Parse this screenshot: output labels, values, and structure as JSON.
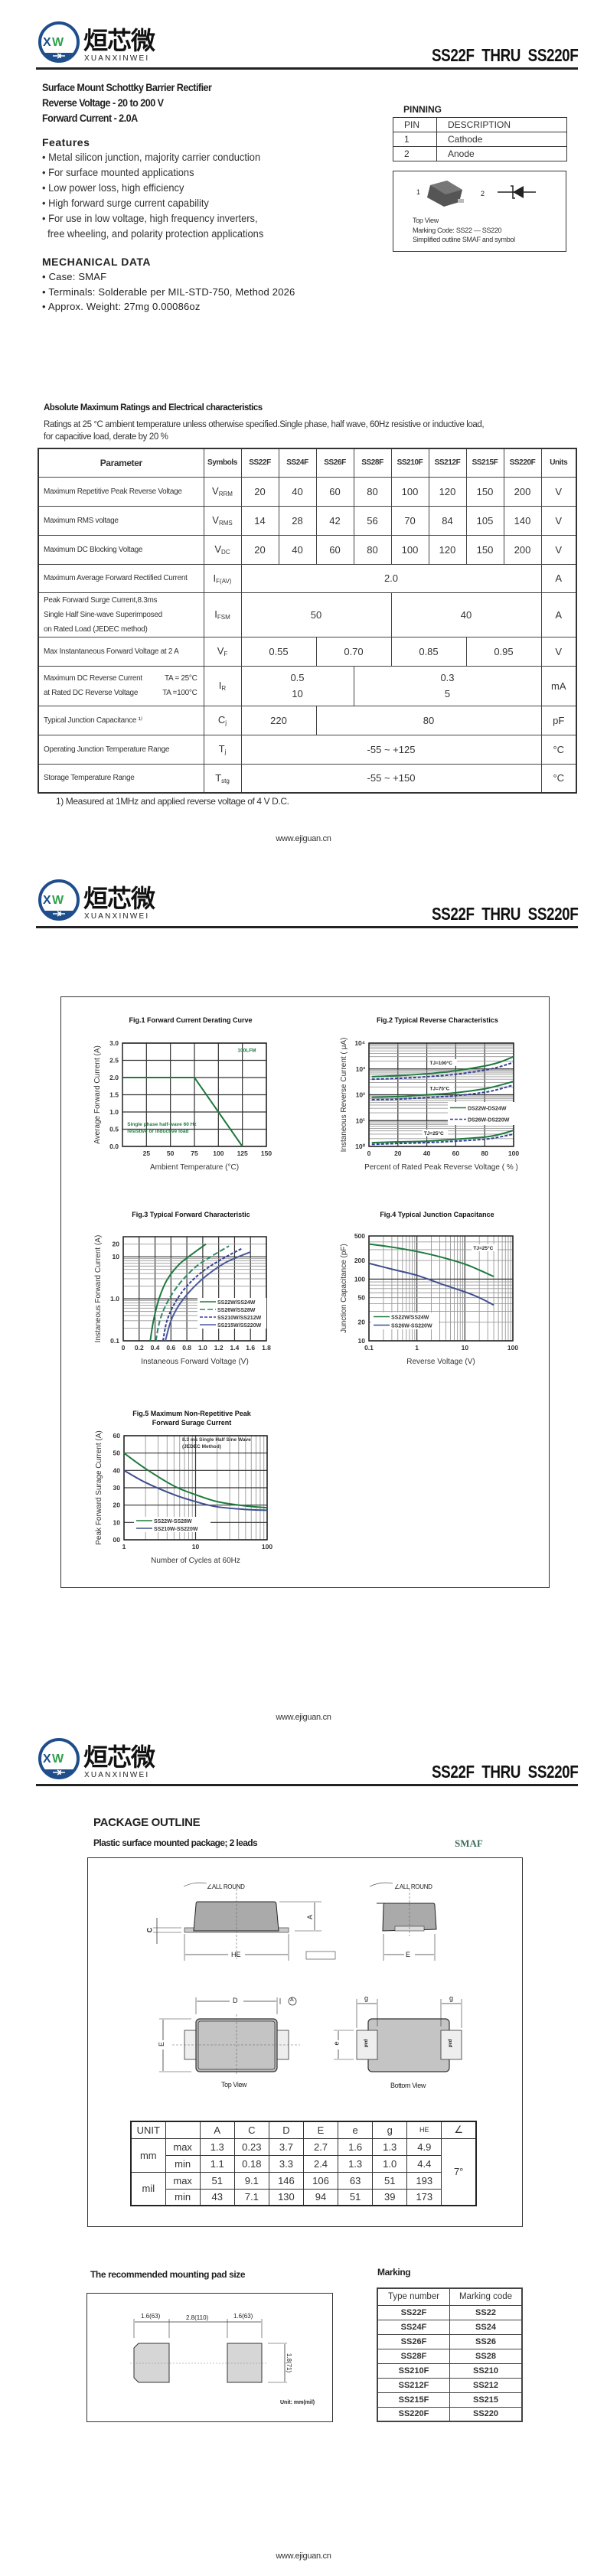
{
  "header": {
    "brand_latin": "XUANXINWEI",
    "brand_cn": "烜芯微",
    "logo_letters": "XW",
    "title": "SS22F  THRU  SS220F",
    "colors": {
      "logo_blue": "#1f4e8c",
      "logo_green": "#2ea04a"
    }
  },
  "intro": {
    "lines": [
      "Surface Mount Schottky Barrier Rectifier",
      "Reverse Voltage - 20 to 200 V",
      "Forward Current - 2.0A"
    ]
  },
  "features": {
    "title": "Features",
    "items": [
      "• Metal silicon junction, majority carrier conduction",
      "• For surface mounted applications",
      "• Low power loss, high efficiency",
      "• High forward surge current capability",
      "• For use in low voltage, high frequency inverters,",
      "  free wheeling, and polarity protection applications"
    ]
  },
  "mechanical": {
    "title": "MECHANICAL DATA",
    "items": [
      "• Case: SMAF",
      "• Terminals: Solderable per MIL-STD-750, Method 2026",
      "• Approx. Weight: 27mg   0.00086oz"
    ]
  },
  "pinning": {
    "title": "PINNING",
    "headers": [
      "PIN",
      "DESCRIPTION"
    ],
    "rows": [
      [
        "1",
        "Cathode"
      ],
      [
        "2",
        "Anode"
      ]
    ],
    "pin1": "1",
    "pin2": "2",
    "caption": [
      "Top View",
      "Marking Code:  SS22 — SS220",
      "Simplified outline SMAF and symbol"
    ]
  },
  "ratings": {
    "title": "Absolute Maximum Ratings and Electrical characteristics",
    "note": [
      "Ratings at 25 °C ambient temperature unless otherwise specified.Single phase, half wave, 60Hz resistive or inductive load,",
      "for capacitive load, derate by 20 %"
    ],
    "columns": [
      "Parameter",
      "Symbols",
      "SS22F",
      "SS24F",
      "SS26F",
      "SS28F",
      "SS210F",
      "SS212F",
      "SS215F",
      "SS220F",
      "Units"
    ],
    "rows": [
      {
        "param": [
          "Maximum Repetitive Peak Reverse Voltage"
        ],
        "sym": "V",
        "sub": "RRM",
        "cells": [
          {
            "v": "20",
            "span": 1
          },
          {
            "v": "40",
            "span": 1
          },
          {
            "v": "60",
            "span": 1
          },
          {
            "v": "80",
            "span": 1
          },
          {
            "v": "100",
            "span": 1
          },
          {
            "v": "120",
            "span": 1
          },
          {
            "v": "150",
            "span": 1
          },
          {
            "v": "200",
            "span": 1
          }
        ],
        "unit": "V"
      },
      {
        "param": [
          "Maximum RMS voltage"
        ],
        "sym": "V",
        "sub": "RMS",
        "cells": [
          {
            "v": "14",
            "span": 1
          },
          {
            "v": "28",
            "span": 1
          },
          {
            "v": "42",
            "span": 1
          },
          {
            "v": "56",
            "span": 1
          },
          {
            "v": "70",
            "span": 1
          },
          {
            "v": "84",
            "span": 1
          },
          {
            "v": "105",
            "span": 1
          },
          {
            "v": "140",
            "span": 1
          }
        ],
        "unit": "V"
      },
      {
        "param": [
          "Maximum DC Blocking Voltage"
        ],
        "sym": "V",
        "sub": "DC",
        "cells": [
          {
            "v": "20",
            "span": 1
          },
          {
            "v": "40",
            "span": 1
          },
          {
            "v": "60",
            "span": 1
          },
          {
            "v": "80",
            "span": 1
          },
          {
            "v": "100",
            "span": 1
          },
          {
            "v": "120",
            "span": 1
          },
          {
            "v": "150",
            "span": 1
          },
          {
            "v": "200",
            "span": 1
          }
        ],
        "unit": "V"
      },
      {
        "param": [
          "Maximum Average Forward Rectified Current"
        ],
        "sym": "I",
        "sub": "F(AV)",
        "cells": [
          {
            "v": "2.0",
            "span": 8
          }
        ],
        "unit": "A"
      },
      {
        "param": [
          "Peak Forward Surge Current,8.3ms",
          "Single Half Sine-wave Superimposed",
          "on Rated Load (JEDEC method)"
        ],
        "sym": "I",
        "sub": "FSM",
        "cells": [
          {
            "v": "50",
            "span": 4
          },
          {
            "v": "40",
            "span": 4
          }
        ],
        "unit": "A"
      },
      {
        "param": [
          "Max Instantaneous Forward Voltage at 2 A"
        ],
        "sym": "V",
        "sub": "F",
        "cells": [
          {
            "v": "0.55",
            "span": 2
          },
          {
            "v": "0.70",
            "span": 2
          },
          {
            "v": "0.85",
            "span": 2
          },
          {
            "v": "0.95",
            "span": 2
          }
        ],
        "unit": "V"
      },
      {
        "param": [
          "Maximum DC Reverse Current",
          "at Rated DC Reverse Voltage"
        ],
        "cond": [
          "TA = 25°C",
          "TA =100°C"
        ],
        "sym": "I",
        "sub": "R",
        "cells": [
          {
            "v": "0.5",
            "v2": "10",
            "span": 3
          },
          {
            "v": "0.3",
            "v2": "5",
            "span": 5
          }
        ],
        "unit": "mA"
      },
      {
        "param": [
          "Typical Junction Capacitance ¹⁾"
        ],
        "sym": "C",
        "sub": "j",
        "cells": [
          {
            "v": "220",
            "span": 2
          },
          {
            "v": "80",
            "span": 6
          }
        ],
        "unit": "pF"
      },
      {
        "param": [
          "Operating Junction Temperature Range"
        ],
        "sym": "T",
        "sub": "j",
        "cells": [
          {
            "v": "-55 ~ +125",
            "span": 8
          }
        ],
        "unit": "°C"
      },
      {
        "param": [
          "Storage Temperature Range"
        ],
        "sym": "T",
        "sub": "stg",
        "cells": [
          {
            "v": "-55 ~ +150",
            "span": 8
          }
        ],
        "unit": "°C"
      }
    ],
    "footnote": "1)  Measured at 1MHz and applied reverse voltage of 4 V D.C."
  },
  "footer": {
    "url": "www.ejiguan.cn"
  },
  "chart_data": [
    {
      "type": "line",
      "title": [
        "Fig.1  Forward Current Derating Curve"
      ],
      "xlabel": "Ambient  Temperature (°C)",
      "ylabel": "Average Forward Current (A)",
      "xscale": "linear",
      "yscale": "linear",
      "xlim": [
        0,
        150
      ],
      "ylim": [
        0,
        3.0
      ],
      "xticks": [
        25,
        50,
        75,
        100,
        125,
        150
      ],
      "xticklabels": [
        "25",
        "50",
        "75",
        "100",
        "125",
        "150"
      ],
      "yticks": [
        0,
        0.5,
        1.0,
        1.5,
        2.0,
        2.5,
        3.0
      ],
      "yticklabels": [
        "0.0",
        "0.5",
        "1.0",
        "1.5",
        "2.0",
        "2.5",
        "3.0"
      ],
      "grid": true,
      "series": [
        {
          "x": [
            0,
            75,
            125
          ],
          "y": [
            2.0,
            2.0,
            0
          ],
          "color": "#1e7a3e",
          "dash": "solid",
          "smooth": false
        }
      ],
      "annotations": [
        "100LFM",
        "Single phase half-wave 60 Hz",
        "resistive or inductive load"
      ]
    },
    {
      "type": "line",
      "title": [
        "Fig.2  Typical Reverse Characteristics"
      ],
      "xlabel": "Percent of Rated Peak Reverse Voltage ( % )",
      "ylabel": "Instaneous Reverse Current ( μA)",
      "xscale": "linear",
      "yscale": "log",
      "xlim": [
        0,
        100
      ],
      "ylim": [
        1,
        10000
      ],
      "xticks": [
        0,
        20,
        40,
        60,
        80,
        100
      ],
      "xticklabels": [
        "0",
        "20",
        "40",
        "60",
        "80",
        "100"
      ],
      "yticks": [
        1,
        10,
        100,
        1000,
        10000
      ],
      "yticklabels": [
        "10⁰",
        "10¹",
        "10²",
        "10³",
        "10⁴"
      ],
      "grid": true,
      "legend": "right",
      "series": [
        {
          "name": "DS22W-DS24W",
          "x": [
            2,
            20,
            40,
            60,
            80,
            90,
            100
          ],
          "y": [
            500,
            550,
            650,
            850,
            1300,
            1800,
            3000
          ],
          "color": "#1e7a3e",
          "dash": "solid",
          "smooth": true
        },
        {
          "name": "DS26W-DS220W",
          "x": [
            2,
            20,
            40,
            60,
            80,
            90,
            100
          ],
          "y": [
            400,
            430,
            500,
            620,
            900,
            1200,
            1800
          ],
          "color": "#333f99",
          "dash": "dashed",
          "smooth": true
        },
        {
          "x": [
            2,
            20,
            40,
            60,
            80,
            90,
            100
          ],
          "y": [
            80,
            85,
            100,
            120,
            170,
            230,
            330
          ],
          "color": "#1e7a3e",
          "dash": "solid",
          "smooth": true
        },
        {
          "x": [
            2,
            20,
            40,
            60,
            80,
            90,
            100
          ],
          "y": [
            65,
            68,
            78,
            92,
            125,
            165,
            240
          ],
          "color": "#333f99",
          "dash": "dashed",
          "smooth": true
        },
        {
          "x": [
            2,
            20,
            40,
            60,
            80,
            90,
            100
          ],
          "y": [
            1.4,
            1.5,
            1.6,
            1.9,
            2.3,
            2.9,
            4.2
          ],
          "color": "#1e7a3e",
          "dash": "solid",
          "smooth": true
        },
        {
          "x": [
            2,
            20,
            40,
            60,
            80,
            90,
            100
          ],
          "y": [
            1.2,
            1.3,
            1.4,
            1.6,
            1.9,
            2.3,
            3.0
          ],
          "color": "#333f99",
          "dash": "dashed",
          "smooth": true
        }
      ],
      "annotations": [
        "TJ=100°C",
        "TJ=75°C",
        "TJ=25°C"
      ]
    },
    {
      "type": "line",
      "title": [
        "Fig.3  Typical Forward Characteristic"
      ],
      "xlabel": "Instaneous Forward Voltage (V)",
      "ylabel": "Instaneous Forward Current  (A)",
      "xscale": "linear",
      "yscale": "log",
      "xlim": [
        0,
        1.8
      ],
      "ylim": [
        0.1,
        30
      ],
      "xticks": [
        0,
        0.2,
        0.4,
        0.6,
        0.8,
        1.0,
        1.2,
        1.4,
        1.6,
        1.8
      ],
      "xticklabels": [
        "0",
        "0.2",
        "0.4",
        "0.6",
        "0.8",
        "1.0",
        "1.2",
        "1.4",
        "1.6",
        "1.8"
      ],
      "yticks": [
        0.1,
        1.0,
        10,
        20
      ],
      "yticklabels": [
        "0.1",
        "1.0",
        "10",
        "20"
      ],
      "grid": true,
      "legend": "bottom-right",
      "series": [
        {
          "name": "SS22W/SS24W",
          "x": [
            0.34,
            0.38,
            0.45,
            0.55,
            0.7,
            0.85,
            1.04
          ],
          "y": [
            0.1,
            0.3,
            1.0,
            2.8,
            6.5,
            11,
            20
          ],
          "color": "#1e7a3e",
          "dash": "solid",
          "smooth": true
        },
        {
          "name": "SS26W/SS28W",
          "x": [
            0.41,
            0.46,
            0.55,
            0.7,
            0.9,
            1.1,
            1.33
          ],
          "y": [
            0.1,
            0.3,
            0.8,
            2.2,
            5.5,
            10,
            18
          ],
          "color": "#2e8a66",
          "dash": "longdash",
          "smooth": true
        },
        {
          "name": "SS210W/SS212W",
          "x": [
            0.5,
            0.55,
            0.65,
            0.8,
            1.0,
            1.25,
            1.5
          ],
          "y": [
            0.1,
            0.3,
            0.8,
            2.0,
            4.5,
            9,
            16
          ],
          "color": "#333f99",
          "dash": "dashed",
          "smooth": true
        },
        {
          "name": "SS215W/SS220W",
          "x": [
            0.53,
            0.6,
            0.7,
            0.85,
            1.05,
            1.3,
            1.6
          ],
          "y": [
            0.1,
            0.3,
            0.7,
            1.6,
            3.6,
            7.5,
            13
          ],
          "color": "#4a5a9a",
          "dash": "solid",
          "smooth": true
        }
      ]
    },
    {
      "type": "line",
      "title": [
        "Fig.4  Typical Junction Capacitance"
      ],
      "xlabel": "Reverse  Voltage (V)",
      "ylabel": "Junction Capacitance (pF)",
      "xscale": "log",
      "yscale": "log",
      "xlim": [
        0.1,
        100
      ],
      "ylim": [
        10,
        500
      ],
      "xticks": [
        0.1,
        1,
        10,
        100
      ],
      "xticklabels": [
        "0.1",
        "1",
        "10",
        "100"
      ],
      "yticks": [
        10,
        20,
        50,
        100,
        200,
        500
      ],
      "yticklabels": [
        "10",
        "20",
        "50",
        "100",
        "200",
        "500"
      ],
      "grid": true,
      "legend": "bottom-left",
      "series": [
        {
          "name": "SS22W/SS24W",
          "x": [
            0.1,
            0.3,
            1,
            3,
            10,
            20,
            40
          ],
          "y": [
            370,
            330,
            280,
            230,
            175,
            140,
            110
          ],
          "color": "#1e7a3e",
          "dash": "solid",
          "smooth": true
        },
        {
          "name": "SS26W-SS220W",
          "x": [
            0.1,
            0.3,
            1,
            3,
            10,
            20,
            40
          ],
          "y": [
            180,
            145,
            115,
            85,
            62,
            50,
            38
          ],
          "color": "#3f4f8f",
          "dash": "solid",
          "smooth": true
        }
      ],
      "annotations": [
        "TJ=25°C"
      ]
    },
    {
      "type": "line",
      "title": [
        "Fig.5  Maximum Non-Repetitive Peak",
        "Forward Surage Current"
      ],
      "xlabel": "Number of Cycles at 60Hz",
      "ylabel": "Peak Forward Surage Current (A)",
      "xscale": "log",
      "yscale": "linear",
      "xlim": [
        1,
        100
      ],
      "ylim": [
        0,
        60
      ],
      "xticks": [
        1,
        10,
        100
      ],
      "xticklabels": [
        "1",
        "10",
        "100"
      ],
      "yticks": [
        0,
        10,
        20,
        30,
        40,
        50,
        60
      ],
      "yticklabels": [
        "00",
        "10",
        "20",
        "30",
        "40",
        "50",
        "60"
      ],
      "grid": true,
      "legend": "bottom-left",
      "series": [
        {
          "name": "SS22W-SS28W",
          "x": [
            1,
            2,
            5,
            10,
            20,
            50,
            100
          ],
          "y": [
            50,
            41,
            31,
            26,
            22,
            19.5,
            18.5
          ],
          "color": "#1e7a3e",
          "dash": "solid",
          "smooth": true
        },
        {
          "name": "SS210W-SS220W",
          "x": [
            1,
            2,
            5,
            10,
            20,
            50,
            100
          ],
          "y": [
            40,
            33,
            26,
            22,
            19,
            17.5,
            17
          ],
          "color": "#3f4f8f",
          "dash": "solid",
          "smooth": true
        }
      ],
      "annotations": [
        "8.3 ms Single Half Sine Wave",
        "(JEDEC Method)"
      ]
    }
  ],
  "package": {
    "title": "PACKAGE  OUTLINE",
    "subtitle": "Plastic surface mounted package; 2 leads",
    "name": "SMAF",
    "labels": {
      "all_round": "∠ALL ROUND",
      "A": "A",
      "C": "C",
      "HE": "HE",
      "E": "E",
      "D": "D",
      "A_ref": "A",
      "e": "e",
      "g": "g",
      "pad": "pad",
      "top_view": "Top View",
      "bottom_view": "Bottom View"
    },
    "dims": {
      "headers": [
        "UNIT",
        "",
        "A",
        "C",
        "D",
        "E",
        "e",
        "g",
        "HE",
        "∠"
      ],
      "rows": [
        {
          "unit": "mm",
          "kind": "max",
          "vals": [
            "1.3",
            "0.23",
            "3.7",
            "2.7",
            "1.6",
            "1.3",
            "4.9"
          ]
        },
        {
          "unit": "",
          "kind": "min",
          "vals": [
            "1.1",
            "0.18",
            "3.3",
            "2.4",
            "1.3",
            "1.0",
            "4.4"
          ]
        },
        {
          "unit": "mil",
          "kind": "max",
          "vals": [
            "51",
            "9.1",
            "146",
            "106",
            "63",
            "51",
            "193"
          ]
        },
        {
          "unit": "",
          "kind": "min",
          "vals": [
            "43",
            "7.1",
            "130",
            "94",
            "51",
            "39",
            "173"
          ]
        }
      ],
      "angle": "7°"
    }
  },
  "mounting": {
    "title": "The recommended mounting pad size",
    "dims": [
      "1.6(63)",
      "2.8(110)",
      "1.6(63)",
      "1.8(71)"
    ],
    "unit": "Unit:  mm(mil)"
  },
  "marking": {
    "title": "Marking",
    "headers": [
      "Type number",
      "Marking code"
    ],
    "rows": [
      [
        "SS22F",
        "SS22"
      ],
      [
        "SS24F",
        "SS24"
      ],
      [
        "SS26F",
        "SS26"
      ],
      [
        "SS28F",
        "SS28"
      ],
      [
        "SS210F",
        "SS210"
      ],
      [
        "SS212F",
        "SS212"
      ],
      [
        "SS215F",
        "SS215"
      ],
      [
        "SS220F",
        "SS220"
      ]
    ]
  }
}
